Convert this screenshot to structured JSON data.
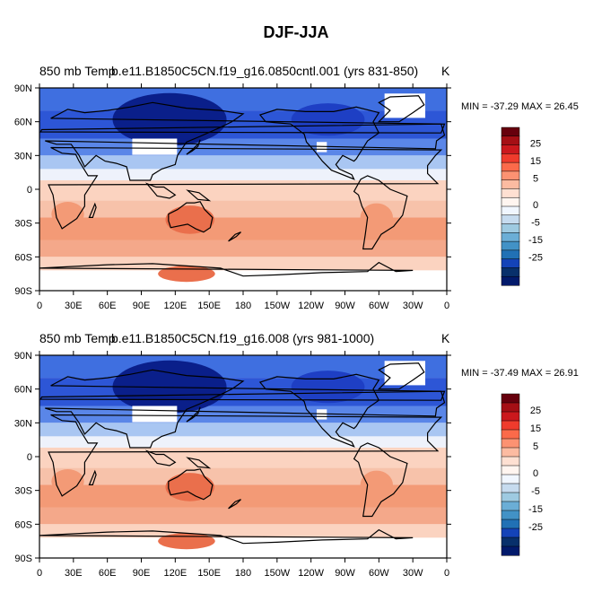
{
  "figure": {
    "title": "DJF-JJA"
  },
  "chart_data": [
    {
      "type": "heatmap",
      "title_left": "850 mb Temp",
      "title_overlap": "b.e11.B1850C5CN.f19_g16.0850cntl.001 (yrs 831-850)",
      "units": "K",
      "min_label": "MIN = -37.29 MAX =  26.45",
      "min": -37.29,
      "max": 26.45,
      "x_ticks": [
        "0",
        "30E",
        "60E",
        "90E",
        "120E",
        "150E",
        "180",
        "150W",
        "120W",
        "90W",
        "60W",
        "30W",
        "0"
      ],
      "y_ticks": [
        "90N",
        "60N",
        "30N",
        "0",
        "30S",
        "60S",
        "90S"
      ],
      "xlim": [
        0,
        360
      ],
      "ylim": [
        -90,
        90
      ]
    },
    {
      "type": "heatmap",
      "title_left": "850 mb Temp",
      "title_overlap": "b.e11.B1850C5CN.f19_g16.008 (yrs 981-1000)",
      "units": "K",
      "min_label": "MIN = -37.49 MAX =  26.91",
      "min": -37.49,
      "max": 26.91,
      "x_ticks": [
        "0",
        "30E",
        "60E",
        "90E",
        "120E",
        "150E",
        "180",
        "150W",
        "120W",
        "90W",
        "60W",
        "30W",
        "0"
      ],
      "y_ticks": [
        "90N",
        "60N",
        "30N",
        "0",
        "30S",
        "60S",
        "90S"
      ],
      "xlim": [
        0,
        360
      ],
      "ylim": [
        -90,
        90
      ]
    }
  ],
  "colorbar": {
    "labels": [
      "25",
      "15",
      "5",
      "0",
      "-5",
      "-15",
      "-25"
    ],
    "colors": [
      "#67000d",
      "#a50f15",
      "#cb181d",
      "#ef3b2c",
      "#fb6a4a",
      "#fc9272",
      "#fcbba1",
      "#fee0d2",
      "#fff5f0",
      "#f0f6ff",
      "#c6dbef",
      "#9ecae1",
      "#6baed6",
      "#4292c6",
      "#2171b5",
      "#1443b8",
      "#08306b",
      "#021a6b"
    ]
  },
  "palette": {
    "deep_blue": "#0a1f8a",
    "mid_blue": "#3f6fe0",
    "light_blue": "#a9c6f2",
    "pale": "#eef2fb",
    "pale_red": "#fbd3c0",
    "mid_red": "#f39a76",
    "red": "#ea6f4c",
    "land_line": "#000000"
  }
}
